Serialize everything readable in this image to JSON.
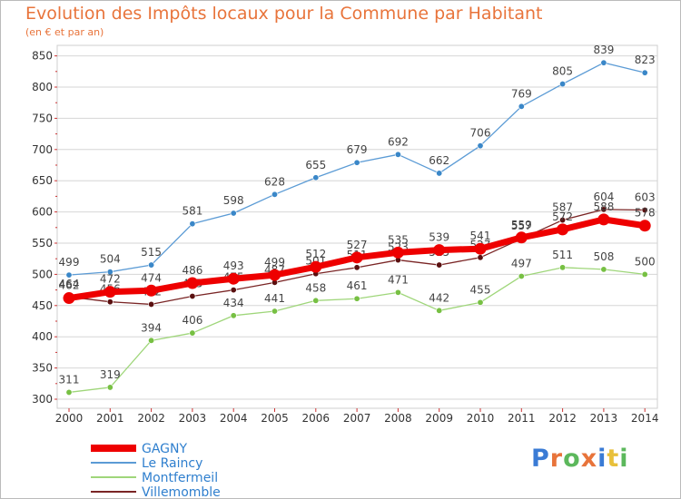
{
  "header": {
    "title": "Evolution des Impôts locaux pour la Commune par Habitant",
    "subtitle": "(en € et par an)"
  },
  "logo": {
    "text": "Proxiti",
    "colors": [
      "#3a7bd5",
      "#e8743b",
      "#5cb85c",
      "#e8743b",
      "#3a7bd5",
      "#e8c03b",
      "#5cb85c"
    ]
  },
  "chart_data": {
    "type": "line",
    "title": "Evolution des Impôts locaux pour la Commune par Habitant",
    "subtitle": "(en € et par an)",
    "x": [
      "2000",
      "2001",
      "2002",
      "2003",
      "2004",
      "2005",
      "2006",
      "2007",
      "2008",
      "2009",
      "2010",
      "2011",
      "2012",
      "2013",
      "2014"
    ],
    "yticks": [
      300,
      350,
      400,
      450,
      500,
      550,
      600,
      650,
      700,
      750,
      800,
      850
    ],
    "ylim": [
      300,
      850
    ],
    "grid": "y",
    "legend_position": "bottom-left",
    "series": [
      {
        "name": "Le Raincy",
        "color": "#5b9bd5",
        "marker": "#3a87c8",
        "values": [
          499,
          504,
          515,
          581,
          598,
          628,
          655,
          679,
          692,
          662,
          706,
          769,
          805,
          839,
          823
        ],
        "labels": [
          "499",
          "504",
          "515",
          "581",
          "598",
          "628",
          "655",
          "679",
          "692",
          "662",
          "706",
          "769",
          "805",
          "839",
          "823"
        ]
      },
      {
        "name": "Montfermeil",
        "color": "#9fd67a",
        "marker": "#77c043",
        "values": [
          311,
          319,
          394,
          406,
          434,
          441,
          458,
          461,
          471,
          442,
          455,
          497,
          511,
          508,
          500
        ],
        "labels": [
          "311",
          "319",
          "394",
          "406",
          "434",
          "441",
          "458",
          "461",
          "471",
          "442",
          "455",
          "497",
          "511",
          "508",
          "500"
        ]
      },
      {
        "name": "Villemomble",
        "color": "#7a2525",
        "marker": "#5a1010",
        "values": [
          464,
          456,
          452,
          465,
          475,
          487,
          501,
          511,
          523,
          515,
          527,
          557,
          587,
          604,
          603
        ],
        "labels": [
          "464",
          "456",
          "452",
          "465",
          "475",
          "487",
          "501",
          "511",
          "523",
          "515",
          "527",
          "557",
          "587",
          "604",
          "603"
        ]
      },
      {
        "name": "GAGNY",
        "color": "#ee0000",
        "marker": "#ee0000",
        "values": [
          462,
          472,
          474,
          486,
          493,
          499,
          512,
          527,
          535,
          539,
          541,
          559,
          572,
          588,
          578
        ],
        "labels": [
          "462",
          "472",
          "474",
          "486",
          "493",
          "499",
          "512",
          "527",
          "535",
          "539",
          "541",
          "559",
          "572",
          "588",
          "578"
        ]
      }
    ],
    "legend_order": [
      "GAGNY",
      "Le Raincy",
      "Montfermeil",
      "Villemomble"
    ],
    "legend_colors": {
      "GAGNY": "#ee0000",
      "Le Raincy": "#5b9bd5",
      "Montfermeil": "#9fd67a",
      "Villemomble": "#7a2525"
    },
    "legend_text_color": "#2f7fce"
  }
}
